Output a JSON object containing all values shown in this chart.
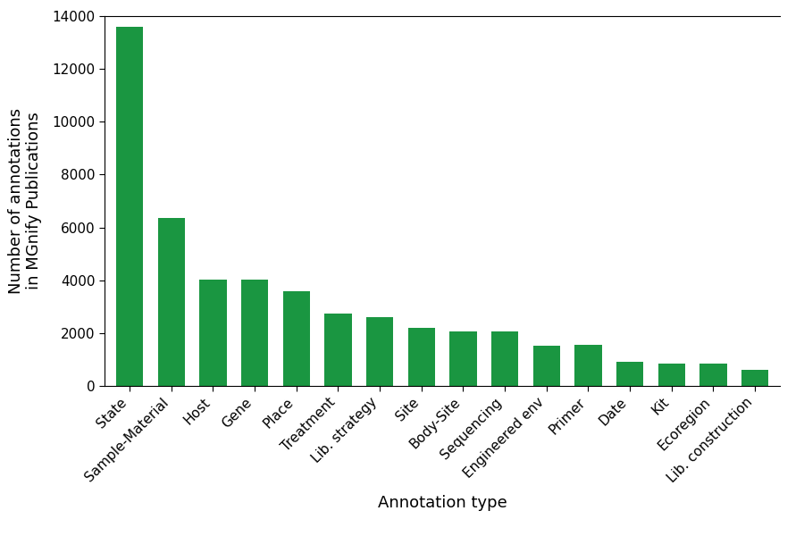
{
  "categories": [
    "State",
    "Sample-Material",
    "Host",
    "Gene",
    "Place",
    "Treatment",
    "Lib. strategy",
    "Site",
    "Body-Site",
    "Sequencing",
    "Engineered env",
    "Primer",
    "Date",
    "Kit",
    "Ecoregion",
    "Lib. construction"
  ],
  "values": [
    13600,
    6350,
    4020,
    4020,
    3600,
    2750,
    2600,
    2200,
    2050,
    2050,
    1530,
    1560,
    900,
    860,
    830,
    600
  ],
  "bar_color": "#1a9641",
  "xlabel": "Annotation type",
  "ylabel": "Number of annotations\nin MGnify Publications",
  "ylim": [
    0,
    14000
  ],
  "yticks": [
    0,
    2000,
    4000,
    6000,
    8000,
    10000,
    12000,
    14000
  ],
  "xlabel_fontsize": 13,
  "ylabel_fontsize": 13,
  "tick_fontsize": 11,
  "figure_width": 9.0,
  "figure_height": 6.0,
  "dpi": 100,
  "font_family": "DejaVu Sans"
}
